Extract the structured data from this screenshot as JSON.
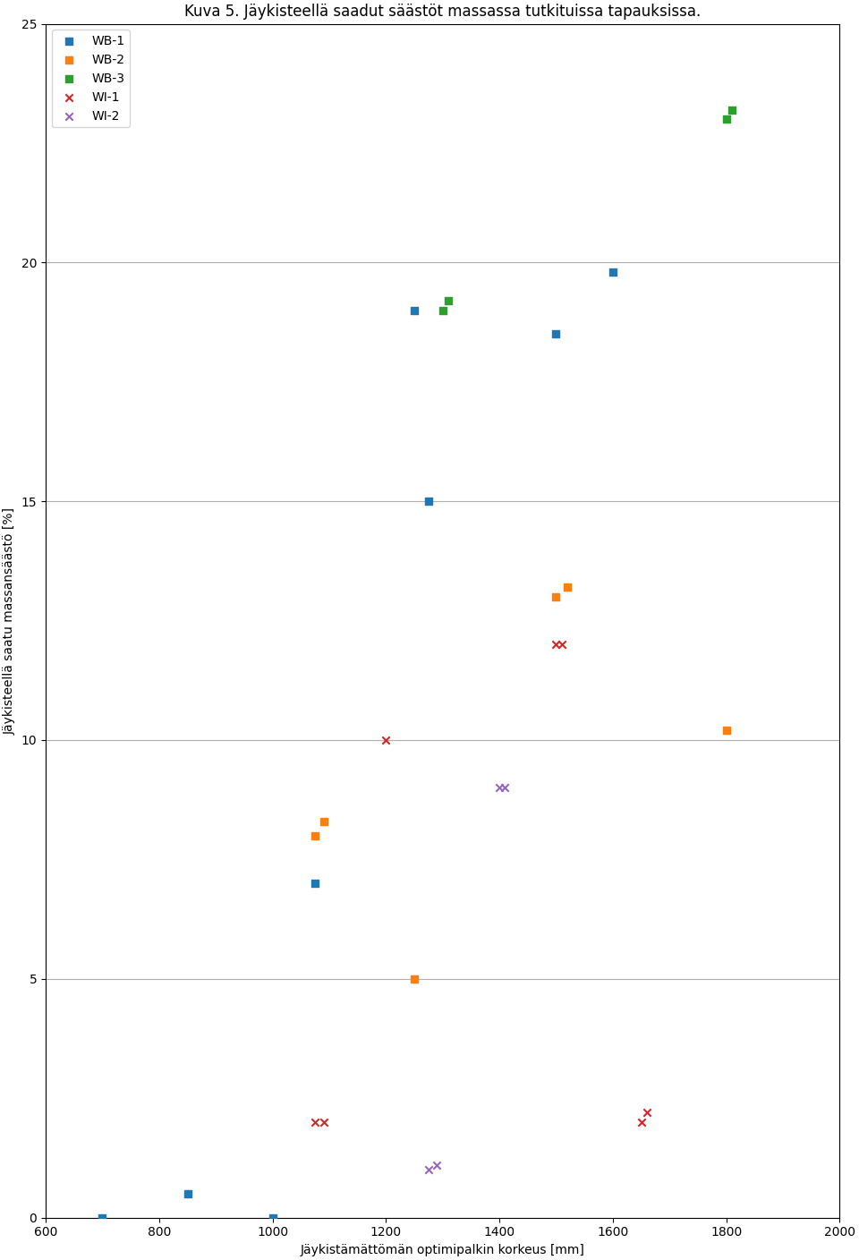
{
  "chart_data": {
    "type": "scatter",
    "title": "Kuva 5. Jäykisteellä saadut säästöt massassa tutkituissa tapauksissa.",
    "xlabel": "Jäykistämättömän optimipalkin korkeus [mm]",
    "ylabel": "Jäykisteellä saatu massansäästö [%]",
    "xlim": [
      600,
      2000
    ],
    "ylim": [
      0,
      25
    ],
    "xticks": [
      600,
      800,
      1000,
      1200,
      1400,
      1600,
      1800,
      2000
    ],
    "yticks": [
      0,
      5,
      10,
      15,
      20,
      25
    ],
    "grid": "y",
    "legend": "upper left",
    "series": [
      {
        "name": "WB-1",
        "marker": "square",
        "x": [
          700,
          850,
          1000,
          1075,
          1250,
          1275,
          1500,
          1600
        ],
        "values": [
          0.0,
          0.5,
          0.0,
          7.0,
          19.0,
          15.0,
          18.5,
          19.8
        ]
      },
      {
        "name": "WB-2",
        "marker": "square",
        "x": [
          1075,
          1090,
          1250,
          1500,
          1520,
          1800
        ],
        "values": [
          8.0,
          8.3,
          5.0,
          13.0,
          13.2,
          10.2
        ]
      },
      {
        "name": "WB-3",
        "marker": "square",
        "x": [
          1300,
          1310,
          1800,
          1810
        ],
        "values": [
          19.0,
          19.2,
          23.0,
          23.2
        ]
      },
      {
        "name": "WI-1",
        "marker": "x",
        "x": [
          1075,
          1090,
          1200,
          1500,
          1510,
          1650,
          1660
        ],
        "values": [
          2.0,
          2.0,
          10.0,
          12.0,
          12.0,
          2.0,
          2.2
        ]
      },
      {
        "name": "WI-2",
        "marker": "x",
        "x": [
          1275,
          1290,
          1400,
          1410
        ],
        "values": [
          1.0,
          1.1,
          9.0,
          9.0
        ]
      }
    ]
  }
}
